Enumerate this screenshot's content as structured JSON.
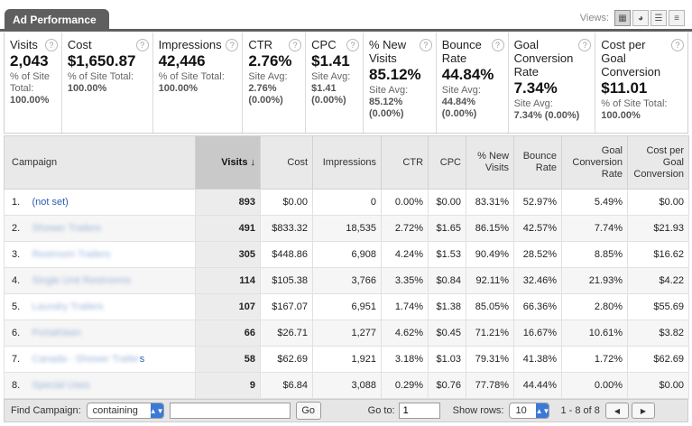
{
  "header": {
    "title": "Ad Performance",
    "views_label": "Views:"
  },
  "view_buttons": [
    {
      "icon": "table-view-icon",
      "glyph": "▦",
      "active": true
    },
    {
      "icon": "pie-view-icon",
      "glyph": "◕",
      "active": false
    },
    {
      "icon": "performance-view-icon",
      "glyph": "☰",
      "active": false
    },
    {
      "icon": "comparison-view-icon",
      "glyph": "≡",
      "active": false
    }
  ],
  "metrics": [
    {
      "label": "Visits",
      "value": "2,043",
      "sub": "% of Site Total:",
      "sub_value": "100.00%"
    },
    {
      "label": "Cost",
      "value": "$1,650.87",
      "sub": "% of Site Total:",
      "sub_value": "100.00%"
    },
    {
      "label": "Impressions",
      "value": "42,446",
      "sub": "% of Site Total:",
      "sub_value": "100.00%"
    },
    {
      "label": "CTR",
      "value": "2.76%",
      "sub": "Site Avg:",
      "sub_value": "2.76%",
      "sub_extra": "(0.00%)"
    },
    {
      "label": "CPC",
      "value": "$1.41",
      "sub": "Site Avg:",
      "sub_value": "$1.41",
      "sub_extra": "(0.00%)"
    },
    {
      "label": "% New Visits",
      "value": "85.12%",
      "sub": "Site Avg:",
      "sub_value": "85.12%",
      "sub_extra": "(0.00%)"
    },
    {
      "label": "Bounce Rate",
      "value": "44.84%",
      "sub": "Site Avg:",
      "sub_value": "44.84%",
      "sub_extra": "(0.00%)"
    },
    {
      "label": "Goal Conversion Rate",
      "value": "7.34%",
      "sub": "Site Avg:",
      "sub_value": "7.34% (0.00%)"
    },
    {
      "label": "Cost per Goal Conversion",
      "value": "$11.01",
      "sub": "% of Site Total:",
      "sub_value": "100.00%"
    }
  ],
  "table": {
    "columns": [
      "Campaign",
      "Visits",
      "Cost",
      "Impressions",
      "CTR",
      "CPC",
      "% New Visits",
      "Bounce Rate",
      "Goal Conversion Rate",
      "Cost per Goal Conversion"
    ],
    "sort_glyph": "↓",
    "rows": [
      {
        "idx": "1.",
        "name": "(not set)",
        "blurred": false,
        "tail": "",
        "visits": "893",
        "cost": "$0.00",
        "impressions": "0",
        "ctr": "0.00%",
        "cpc": "$0.00",
        "new_visits": "83.31%",
        "bounce": "52.97%",
        "gcr": "5.49%",
        "cpgc": "$0.00"
      },
      {
        "idx": "2.",
        "name": "Shower Trailers",
        "blurred": true,
        "tail": "",
        "visits": "491",
        "cost": "$833.32",
        "impressions": "18,535",
        "ctr": "2.72%",
        "cpc": "$1.65",
        "new_visits": "86.15%",
        "bounce": "42.57%",
        "gcr": "7.74%",
        "cpgc": "$21.93"
      },
      {
        "idx": "3.",
        "name": "Restroom Trailers",
        "blurred": true,
        "tail": "",
        "visits": "305",
        "cost": "$448.86",
        "impressions": "6,908",
        "ctr": "4.24%",
        "cpc": "$1.53",
        "new_visits": "90.49%",
        "bounce": "28.52%",
        "gcr": "8.85%",
        "cpgc": "$16.62"
      },
      {
        "idx": "4.",
        "name": "Single Unit Restrooms",
        "blurred": true,
        "tail": "",
        "visits": "114",
        "cost": "$105.38",
        "impressions": "3,766",
        "ctr": "3.35%",
        "cpc": "$0.84",
        "new_visits": "92.11%",
        "bounce": "32.46%",
        "gcr": "21.93%",
        "cpgc": "$4.22"
      },
      {
        "idx": "5.",
        "name": "Laundry Trailers",
        "blurred": true,
        "tail": "",
        "visits": "107",
        "cost": "$167.07",
        "impressions": "6,951",
        "ctr": "1.74%",
        "cpc": "$1.38",
        "new_visits": "85.05%",
        "bounce": "66.36%",
        "gcr": "2.80%",
        "cpgc": "$55.69"
      },
      {
        "idx": "6.",
        "name": "PortaKleen",
        "blurred": true,
        "tail": "",
        "visits": "66",
        "cost": "$26.71",
        "impressions": "1,277",
        "ctr": "4.62%",
        "cpc": "$0.45",
        "new_visits": "71.21%",
        "bounce": "16.67%",
        "gcr": "10.61%",
        "cpgc": "$3.82"
      },
      {
        "idx": "7.",
        "name": "Canada - Shower Trailer",
        "blurred": true,
        "tail": "s",
        "visits": "58",
        "cost": "$62.69",
        "impressions": "1,921",
        "ctr": "3.18%",
        "cpc": "$1.03",
        "new_visits": "79.31%",
        "bounce": "41.38%",
        "gcr": "1.72%",
        "cpgc": "$62.69"
      },
      {
        "idx": "8.",
        "name": "Special Uses",
        "blurred": true,
        "tail": "",
        "visits": "9",
        "cost": "$6.84",
        "impressions": "3,088",
        "ctr": "0.29%",
        "cpc": "$0.76",
        "new_visits": "77.78%",
        "bounce": "44.44%",
        "gcr": "0.00%",
        "cpgc": "$0.00"
      }
    ]
  },
  "footer": {
    "find_label": "Find Campaign:",
    "filter_value": "containing",
    "search_value": "",
    "go_label": "Go",
    "goto_label": "Go to:",
    "goto_value": "1",
    "show_rows_label": "Show rows:",
    "show_rows_value": "10",
    "range": "1 - 8 of 8",
    "prev_glyph": "◀",
    "next_glyph": "▶"
  }
}
